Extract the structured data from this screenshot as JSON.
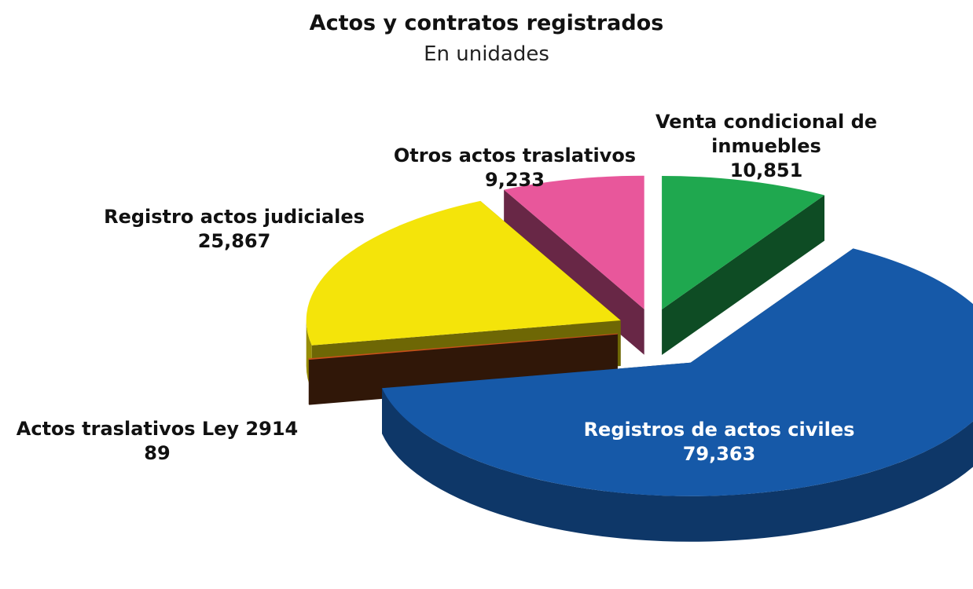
{
  "chart_data": {
    "type": "pie3d",
    "title": "Actos y contratos registrados",
    "subtitle": "En unidades",
    "categories": [
      "Venta condicional de inmuebles",
      "Registros de actos civiles",
      "Actos traslativos Ley 2914",
      "Registro actos judiciales",
      "Otros actos traslativos"
    ],
    "values": [
      10851,
      79363,
      89,
      25867,
      9233
    ],
    "value_labels": [
      "10,851",
      "79,363",
      "89",
      "25,867",
      "9,233"
    ],
    "colors": [
      "#1fa84f",
      "#1659a8",
      "#6a3212",
      "#f4e40a",
      "#e8579b"
    ]
  }
}
